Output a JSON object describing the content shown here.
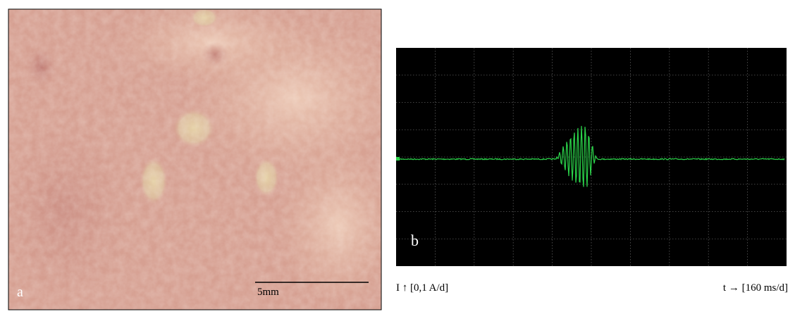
{
  "panel_a": {
    "label": "a",
    "scale_bar": "5mm"
  },
  "panel_b": {
    "label": "b",
    "y_axis": "I ↑ [0,1 A/d]",
    "x_axis": "t → [160 ms/d]"
  }
}
